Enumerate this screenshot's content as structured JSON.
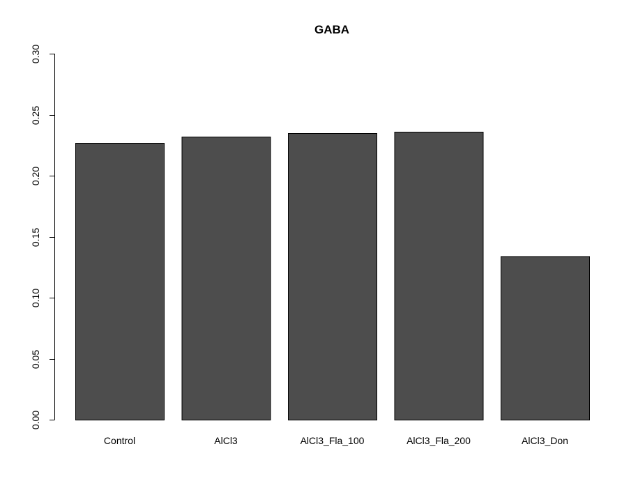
{
  "chart_data": {
    "type": "bar",
    "title": "GABA",
    "xlabel": "",
    "ylabel": "",
    "categories": [
      "Control",
      "AlCl3",
      "AlCl3_Fla_100",
      "AlCl3_Fla_200",
      "AlCl3_Don"
    ],
    "values": [
      0.227,
      0.232,
      0.235,
      0.236,
      0.134
    ],
    "ylim": [
      0,
      0.3
    ],
    "yticks": [
      "0.00",
      "0.05",
      "0.10",
      "0.15",
      "0.20",
      "0.25",
      "0.30"
    ],
    "grid": false,
    "legend": "none",
    "bar_color": "#4d4d4d"
  }
}
